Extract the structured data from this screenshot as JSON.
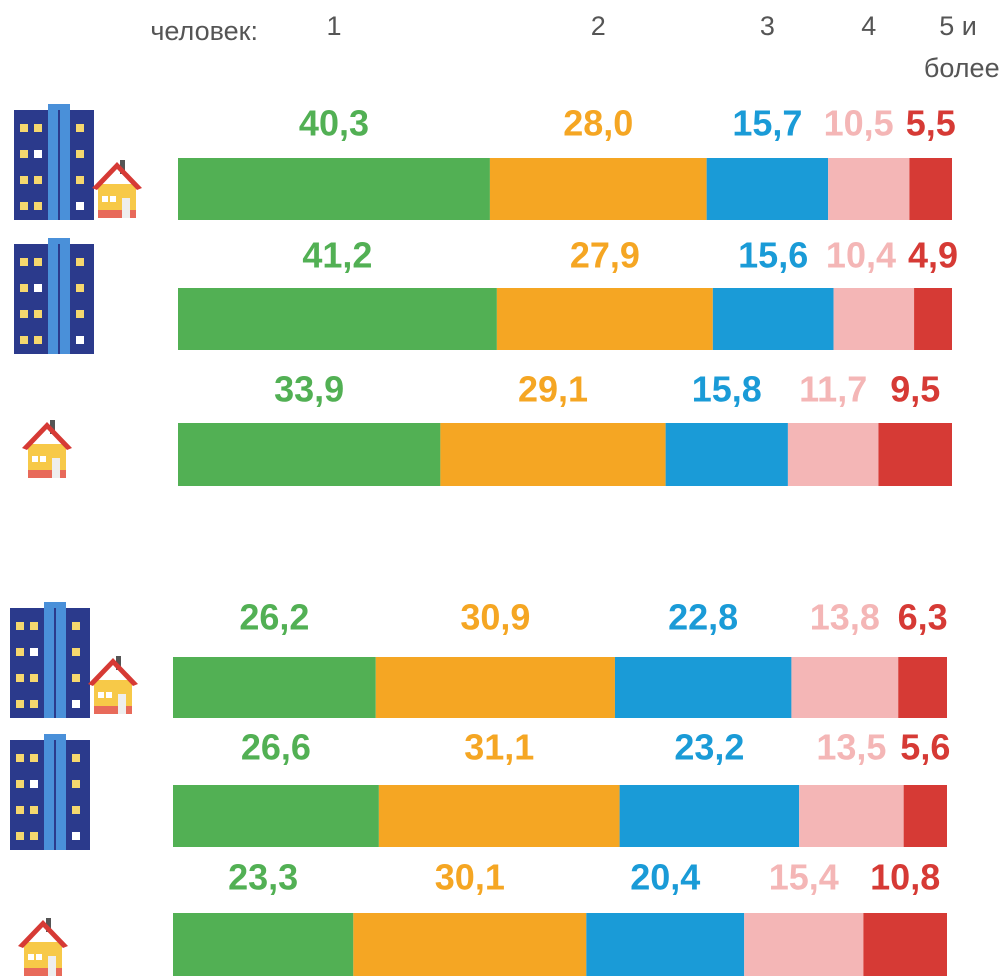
{
  "chart_data": {
    "type": "bar",
    "orientation": "horizontal",
    "stacked": true,
    "legend_title": "человек:",
    "categories": [
      null,
      null,
      null,
      null,
      null,
      null
    ],
    "xlim": [
      0,
      100
    ],
    "series": [
      {
        "name": "1",
        "color": "#52b054",
        "values": [
          40.3,
          41.2,
          33.9,
          26.2,
          26.6,
          23.3
        ],
        "value_labels": [
          "40,3",
          "41,2",
          "33,9",
          "26,2",
          "26,6",
          "23,3"
        ]
      },
      {
        "name": "2",
        "color": "#f5a623",
        "values": [
          28.0,
          27.9,
          29.1,
          30.9,
          31.1,
          30.1
        ],
        "value_labels": [
          "28,0",
          "27,9",
          "29,1",
          "30,9",
          "31,1",
          "30,1"
        ]
      },
      {
        "name": "3",
        "color": "#1a9bd7",
        "values": [
          15.7,
          15.6,
          15.8,
          22.8,
          23.2,
          20.4
        ],
        "value_labels": [
          "15,7",
          "15,6",
          "15,8",
          "22,8",
          "23,2",
          "20,4"
        ]
      },
      {
        "name": "4",
        "color": "#f4b6b6",
        "values": [
          10.5,
          10.4,
          11.7,
          13.8,
          13.5,
          15.4
        ],
        "value_labels": [
          "10,5",
          "10,4",
          "11,7",
          "13,8",
          "13,5",
          "15,4"
        ]
      },
      {
        "name": "5 и более",
        "color": "#d63a35",
        "values": [
          5.5,
          4.9,
          9.5,
          6.3,
          5.6,
          10.8
        ],
        "value_labels": [
          "5,5",
          "4,9",
          "9,5",
          "6,3",
          "5,6",
          "10,8"
        ]
      }
    ]
  }
}
